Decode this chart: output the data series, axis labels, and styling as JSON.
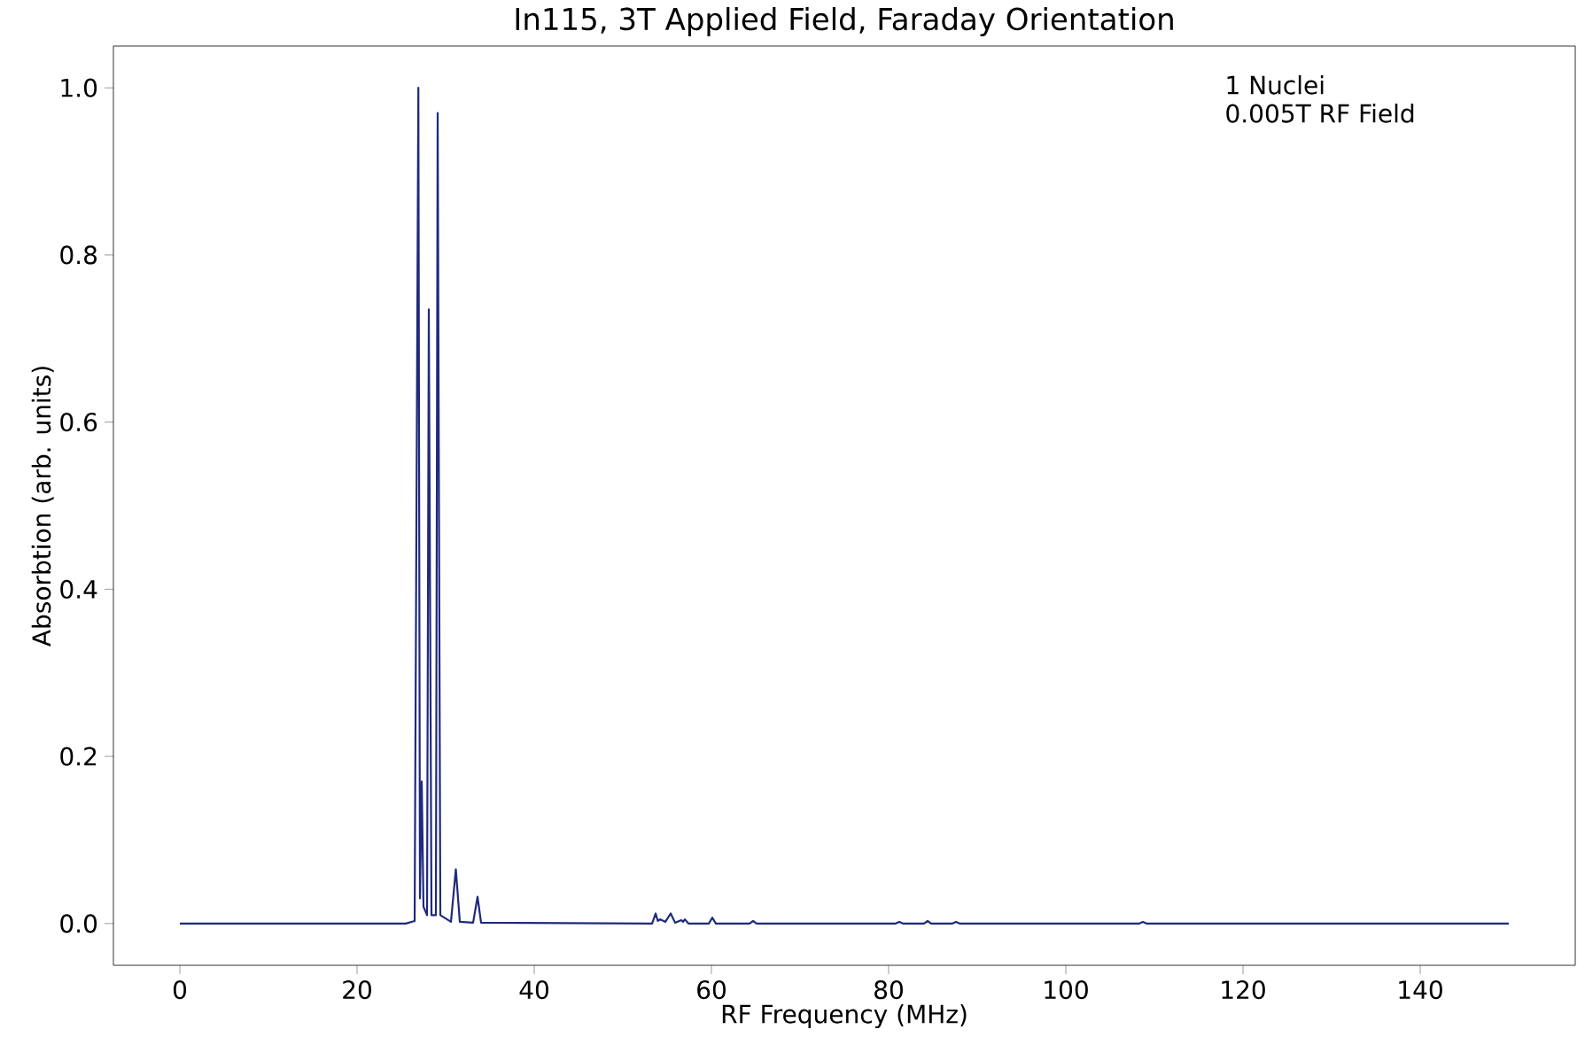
{
  "chart_data": {
    "type": "line",
    "title": "In115, 3T Applied Field, Faraday Orientation",
    "xlabel": "RF Frequency (MHz)",
    "ylabel": "Absorbtion (arb. units)",
    "annotations": [
      "1 Nuclei",
      "0.005T RF Field"
    ],
    "xlim": [
      -7.5,
      157.5
    ],
    "ylim": [
      -0.05,
      1.05
    ],
    "xticks": [
      0,
      20,
      40,
      60,
      80,
      100,
      120,
      140
    ],
    "yticks": [
      {
        "value": 0,
        "label": "0.0"
      },
      {
        "value": 0.2,
        "label": "0.2"
      },
      {
        "value": 0.4,
        "label": "0.4"
      },
      {
        "value": 0.6,
        "label": "0.6"
      },
      {
        "value": 0.8,
        "label": "0.8"
      },
      {
        "value": 1.0,
        "label": "1.0"
      }
    ],
    "grid": false,
    "marker": "none",
    "line_style": "solid",
    "series": [
      {
        "color": "#1f2a7c",
        "x": [
          0,
          25.5,
          26.5,
          26.92,
          27.1,
          27.3,
          27.5,
          27.9,
          28.1,
          28.4,
          28.9,
          29.1,
          29.4,
          30.6,
          31.15,
          31.6,
          33.1,
          33.6,
          34.0,
          53.3,
          53.7,
          53.95,
          54.2,
          54.8,
          55.4,
          55.9,
          56.6,
          56.8,
          57.0,
          57.4,
          59.7,
          60.1,
          60.5,
          64.3,
          64.7,
          65.1,
          80.8,
          81.2,
          81.6,
          84.0,
          84.4,
          84.8,
          87.2,
          87.6,
          88.0,
          108.3,
          108.7,
          109.1,
          150
        ],
        "values": [
          0,
          0,
          0.003,
          1.0,
          0.03,
          0.17,
          0.02,
          0.01,
          0.735,
          0.01,
          0.01,
          0.97,
          0.01,
          0.002,
          0.065,
          0.002,
          0.001,
          0.032,
          0.001,
          0,
          0.012,
          0.003,
          0.005,
          0.002,
          0.012,
          0.001,
          0.004,
          0.002,
          0.005,
          0,
          0,
          0.007,
          0,
          0,
          0.003,
          0,
          0,
          0.002,
          0,
          0,
          0.003,
          0,
          0,
          0.002,
          0,
          0,
          0.002,
          0,
          0
        ]
      }
    ]
  }
}
